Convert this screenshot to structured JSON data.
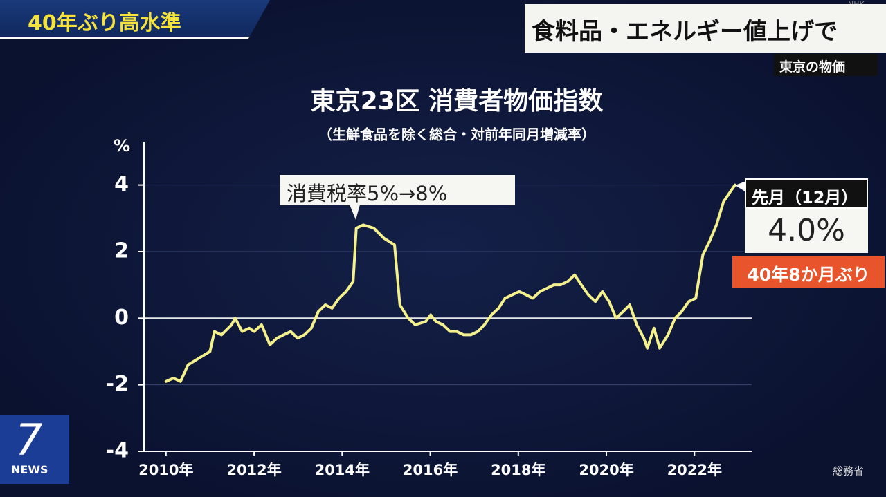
{
  "banner": "40年ぶり高水準",
  "headline": "食料品・エネルギー値上げで",
  "subhead": "東京の物価",
  "channel": "NHK",
  "logo": {
    "number": "7",
    "text": "NEWS"
  },
  "chart_data": {
    "type": "line",
    "title": "東京23区 消費者物価指数",
    "subtitle": "（生鮮食品を除く総合・対前年同月増減率）",
    "y_label": "%",
    "source": "総務省",
    "x": [
      2010.0,
      2010.17,
      2010.33,
      2010.5,
      2010.75,
      2011.0,
      2011.1,
      2011.26,
      2011.49,
      2011.57,
      2011.73,
      2011.89,
      2012.0,
      2012.17,
      2012.36,
      2012.52,
      2012.67,
      2012.83,
      2012.99,
      2013.14,
      2013.3,
      2013.46,
      2013.62,
      2013.77,
      2013.93,
      2014.09,
      2014.25,
      2014.32,
      2014.48,
      2014.72,
      2014.95,
      2015.19,
      2015.31,
      2015.5,
      2015.66,
      2015.9,
      2016.01,
      2016.13,
      2016.29,
      2016.45,
      2016.6,
      2016.76,
      2016.92,
      2017.08,
      2017.23,
      2017.39,
      2017.55,
      2017.7,
      2017.86,
      2018.02,
      2018.18,
      2018.33,
      2018.49,
      2018.65,
      2018.81,
      2018.96,
      2019.12,
      2019.28,
      2019.43,
      2019.59,
      2019.75,
      2019.91,
      2020.06,
      2020.22,
      2020.38,
      2020.53,
      2020.69,
      2020.85,
      2020.93,
      2021.08,
      2021.21,
      2021.4,
      2021.56,
      2021.71,
      2021.87,
      2022.03,
      2022.19,
      2022.34,
      2022.5,
      2022.66,
      2022.92
    ],
    "series": [
      {
        "color": "#f4f08c",
        "values": [
          -1.9,
          -1.8,
          -1.9,
          -1.4,
          -1.2,
          -1.0,
          -0.4,
          -0.5,
          -0.2,
          0.0,
          -0.4,
          -0.3,
          -0.4,
          -0.2,
          -0.8,
          -0.6,
          -0.5,
          -0.4,
          -0.6,
          -0.5,
          -0.3,
          0.2,
          0.4,
          0.3,
          0.6,
          0.8,
          1.1,
          2.7,
          2.8,
          2.7,
          2.4,
          2.2,
          0.4,
          0.0,
          -0.2,
          -0.1,
          0.1,
          -0.1,
          -0.2,
          -0.4,
          -0.4,
          -0.5,
          -0.5,
          -0.4,
          -0.2,
          0.1,
          0.3,
          0.6,
          0.7,
          0.8,
          0.7,
          0.6,
          0.8,
          0.9,
          1.0,
          1.0,
          1.1,
          1.3,
          1.0,
          0.7,
          0.5,
          0.8,
          0.5,
          0.0,
          0.2,
          0.4,
          -0.2,
          -0.6,
          -0.9,
          -0.3,
          -0.9,
          -0.5,
          0.0,
          0.2,
          0.5,
          0.6,
          1.9,
          2.3,
          2.8,
          3.5,
          4.0
        ]
      }
    ],
    "xlim": [
      2009.5,
      2023.3
    ],
    "ylim": [
      -4,
      5.3
    ],
    "xticks": [
      {
        "value": 2010,
        "label": "2010年"
      },
      {
        "value": 2012,
        "label": "2012年"
      },
      {
        "value": 2014,
        "label": "2014年"
      },
      {
        "value": 2016,
        "label": "2016年"
      },
      {
        "value": 2018,
        "label": "2018年"
      },
      {
        "value": 2020,
        "label": "2020年"
      },
      {
        "value": 2022,
        "label": "2022年"
      }
    ],
    "yticks": [
      4,
      2,
      0,
      -2,
      -4
    ],
    "grid": true,
    "annotations": [
      "消費税率5%→8%"
    ],
    "callout": {
      "title": "先月（12月）",
      "value_label": "4.0%",
      "note": "40年8か月ぶり"
    }
  }
}
